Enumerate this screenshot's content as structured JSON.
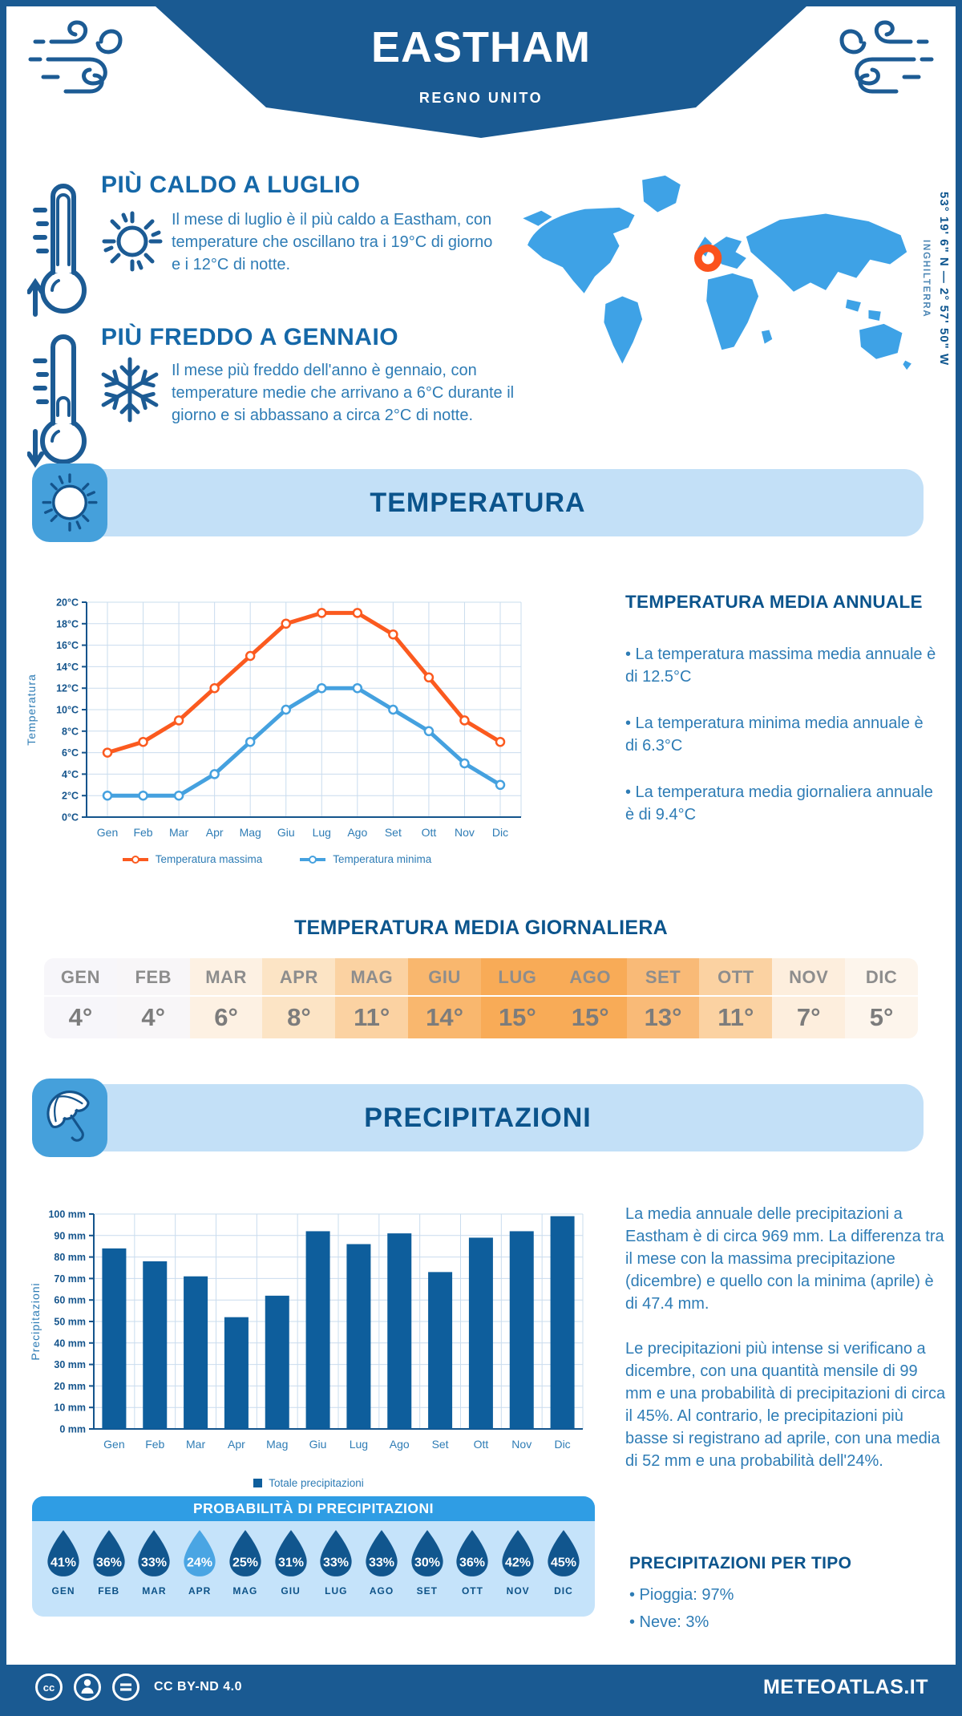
{
  "banner": {
    "city": "EASTHAM",
    "country": "REGNO UNITO"
  },
  "highlights": {
    "hot": {
      "title": "PIÙ CALDO A LUGLIO",
      "text": "Il mese di luglio è il più caldo a Eastham, con temperature che oscillano tra i 19°C di giorno e i 12°C di notte."
    },
    "cold": {
      "title": "PIÙ FREDDO A GENNAIO",
      "text": "Il mese più freddo dell'anno è gennaio, con temperature medie che arrivano a 6°C durante il giorno e si abbassano a circa 2°C di notte."
    }
  },
  "location": {
    "coordinates": "53° 19' 6\" N — 2° 57' 50\" W",
    "region": "INGHILTERRA"
  },
  "temperature": {
    "band_title": "TEMPERATURA",
    "annual": {
      "title": "TEMPERATURA MEDIA ANNUALE",
      "bullets": [
        "• La temperatura massima media annuale è di 12.5°C",
        "• La temperatura minima media annuale è di 6.3°C",
        "• La temperatura media giornaliera annuale è di 9.4°C"
      ]
    },
    "daily": {
      "title": "TEMPERATURA MEDIA GIORNALIERA",
      "months": [
        "GEN",
        "FEB",
        "MAR",
        "APR",
        "MAG",
        "GIU",
        "LUG",
        "AGO",
        "SET",
        "OTT",
        "NOV",
        "DIC"
      ],
      "values": [
        "4°",
        "4°",
        "6°",
        "8°",
        "11°",
        "14°",
        "15°",
        "15°",
        "13°",
        "11°",
        "7°",
        "5°"
      ],
      "cell_colors": [
        "#f7f6fa",
        "#f8f6f8",
        "#fdf1e3",
        "#fce4c5",
        "#fbd2a2",
        "#f9b76e",
        "#f8ab57",
        "#f8ab57",
        "#f9ba77",
        "#fbd2a2",
        "#fdeedd",
        "#fdf5ec"
      ]
    }
  },
  "precipitation": {
    "band_title": "PRECIPITAZIONI",
    "paragraphs": [
      "La media annuale delle precipitazioni a Eastham è di circa 969 mm. La differenza tra il mese con la massima precipitazione (dicembre) e quello con la minima (aprile) è di 47.4 mm.",
      "Le precipitazioni più intense si verificano a dicembre, con una quantità mensile di 99 mm e una probabilità di precipitazioni di circa il 45%. Al contrario, le precipitazioni più basse si registrano ad aprile, con una media di 52 mm e una probabilità dell'24%."
    ],
    "probability": {
      "title": "PROBABILITÀ DI PRECIPITAZIONI",
      "months": [
        "GEN",
        "FEB",
        "MAR",
        "APR",
        "MAG",
        "GIU",
        "LUG",
        "AGO",
        "SET",
        "OTT",
        "NOV",
        "DIC"
      ],
      "values": [
        "41%",
        "36%",
        "33%",
        "24%",
        "25%",
        "31%",
        "33%",
        "33%",
        "30%",
        "36%",
        "42%",
        "45%"
      ],
      "highlight_index": 3,
      "drop_color": "#11568e",
      "drop_highlight_color": "#4aa5e3"
    },
    "types": {
      "title": "PRECIPITAZIONI PER TIPO",
      "items": [
        "• Pioggia: 97%",
        "• Neve: 3%"
      ]
    }
  },
  "footer": {
    "license": "CC BY-ND 4.0",
    "site": "METEOATLAS.IT"
  },
  "chart_data": [
    {
      "type": "line",
      "x": [
        "Gen",
        "Feb",
        "Mar",
        "Apr",
        "Mag",
        "Giu",
        "Lug",
        "Ago",
        "Set",
        "Ott",
        "Nov",
        "Dic"
      ],
      "series": [
        {
          "name": "Temperatura massima",
          "color": "#fb5a1f",
          "values": [
            6,
            7,
            9,
            12,
            15,
            18,
            19,
            19,
            17,
            13,
            9,
            7
          ]
        },
        {
          "name": "Temperatura minima",
          "color": "#45a1df",
          "values": [
            2,
            2,
            2,
            4,
            7,
            10,
            12,
            12,
            10,
            8,
            5,
            3
          ]
        }
      ],
      "ylabel": "Temperatura",
      "ylim": [
        0,
        20
      ],
      "ytick_step": 2,
      "ytick_suffix": "°C",
      "grid": true,
      "legend_position": "bottom"
    },
    {
      "type": "bar",
      "categories": [
        "Gen",
        "Feb",
        "Mar",
        "Apr",
        "Mag",
        "Giu",
        "Lug",
        "Ago",
        "Set",
        "Ott",
        "Nov",
        "Dic"
      ],
      "values": [
        84,
        78,
        71,
        52,
        62,
        92,
        86,
        91,
        73,
        89,
        92,
        99
      ],
      "series_name": "Totale precipitazioni",
      "color": "#0e5e9c",
      "ylabel": "Precipitazioni",
      "ylim": [
        0,
        100
      ],
      "ytick_step": 10,
      "ytick_suffix": " mm",
      "grid": true,
      "legend_position": "bottom"
    }
  ]
}
